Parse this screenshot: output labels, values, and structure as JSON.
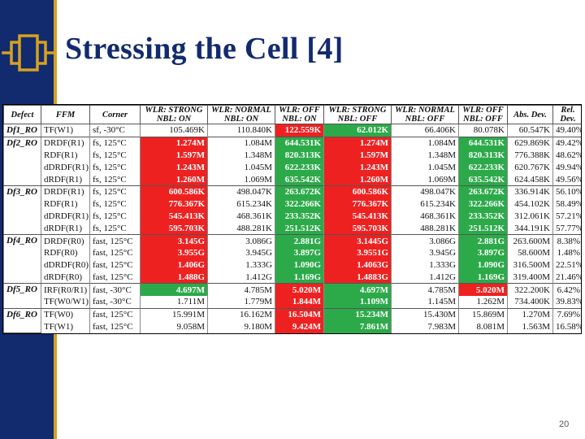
{
  "slide": {
    "title": "Stressing the Cell [4]",
    "page_number": "20"
  },
  "colors": {
    "sidebar": "#122a6e",
    "accent": "#d6a11f",
    "red": "#ee2121",
    "green": "#2caa4a"
  },
  "table": {
    "headers": [
      "Defect",
      "FFM",
      "Corner",
      "WLR: STRONG NBL: ON",
      "WLR: NORMAL NBL: ON",
      "WLR: OFF NBL: ON",
      "WLR: STRONG NBL: OFF",
      "WLR: NORMAL NBL: OFF",
      "WLR: OFF NBL: OFF",
      "Abs. Dev.",
      "Rel. Dev."
    ],
    "groups": [
      {
        "defect": "Df1_RO",
        "rows": [
          {
            "cells": [
              "TF(W1)",
              "sf, -30°C",
              "105.469K",
              "110.840K",
              "122.559K",
              "62.012K",
              "66.406K",
              "80.078K",
              "60.547K",
              "49.40%"
            ],
            "hl": [
              "",
              "",
              "",
              "",
              "red",
              "green",
              "",
              "",
              "",
              ""
            ]
          }
        ]
      },
      {
        "defect": "Df2_RO",
        "rows": [
          {
            "cells": [
              "DRDF(R1)",
              "fs, 125°C",
              "1.274M",
              "1.084M",
              "644.531K",
              "1.274M",
              "1.084M",
              "644.531K",
              "629.869K",
              "49.42%"
            ],
            "hl": [
              "",
              "",
              "red",
              "",
              "green",
              "red",
              "",
              "green",
              "",
              ""
            ]
          },
          {
            "cells": [
              "RDF(R1)",
              "fs, 125°C",
              "1.597M",
              "1.348M",
              "820.313K",
              "1.597M",
              "1.348M",
              "820.313K",
              "776.388K",
              "48.62%"
            ],
            "hl": [
              "",
              "",
              "red",
              "",
              "green",
              "red",
              "",
              "green",
              "",
              ""
            ]
          },
          {
            "cells": [
              "dDRDF(R1)",
              "fs, 125°C",
              "1.243M",
              "1.045M",
              "622.233K",
              "1.243M",
              "1.045M",
              "622.233K",
              "620.767K",
              "49.94%"
            ],
            "hl": [
              "",
              "",
              "red",
              "",
              "green",
              "red",
              "",
              "green",
              "",
              ""
            ]
          },
          {
            "cells": [
              "dRDF(R1)",
              "fs, 125°C",
              "1.260M",
              "1.069M",
              "635.542K",
              "1.260M",
              "1.069M",
              "635.542K",
              "624.458K",
              "49.56%"
            ],
            "hl": [
              "",
              "",
              "red",
              "",
              "green",
              "red",
              "",
              "green",
              "",
              ""
            ]
          }
        ]
      },
      {
        "defect": "Df3_RO",
        "rows": [
          {
            "cells": [
              "DRDF(R1)",
              "fs, 125°C",
              "600.586K",
              "498.047K",
              "263.672K",
              "600.586K",
              "498.047K",
              "263.672K",
              "336.914K",
              "56.10%"
            ],
            "hl": [
              "",
              "",
              "red",
              "",
              "green",
              "red",
              "",
              "green",
              "",
              ""
            ]
          },
          {
            "cells": [
              "RDF(R1)",
              "fs, 125°C",
              "776.367K",
              "615.234K",
              "322.266K",
              "776.367K",
              "615.234K",
              "322.266K",
              "454.102K",
              "58.49%"
            ],
            "hl": [
              "",
              "",
              "red",
              "",
              "green",
              "red",
              "",
              "green",
              "",
              ""
            ]
          },
          {
            "cells": [
              "dDRDF(R1)",
              "fs, 125°C",
              "545.413K",
              "468.361K",
              "233.352K",
              "545.413K",
              "468.361K",
              "233.352K",
              "312.061K",
              "57.21%"
            ],
            "hl": [
              "",
              "",
              "red",
              "",
              "green",
              "red",
              "",
              "green",
              "",
              ""
            ]
          },
          {
            "cells": [
              "dRDF(R1)",
              "fs, 125°C",
              "595.703K",
              "488.281K",
              "251.512K",
              "595.703K",
              "488.281K",
              "251.512K",
              "344.191K",
              "57.77%"
            ],
            "hl": [
              "",
              "",
              "red",
              "",
              "green",
              "red",
              "",
              "green",
              "",
              ""
            ]
          }
        ]
      },
      {
        "defect": "Df4_RO",
        "rows": [
          {
            "cells": [
              "DRDF(R0)",
              "fast, 125°C",
              "3.145G",
              "3.086G",
              "2.881G",
              "3.1445G",
              "3.086G",
              "2.881G",
              "263.600M",
              "8.38%"
            ],
            "hl": [
              "",
              "",
              "red",
              "",
              "green",
              "red",
              "",
              "green",
              "",
              ""
            ]
          },
          {
            "cells": [
              "RDF(R0)",
              "fast, 125°C",
              "3.955G",
              "3.945G",
              "3.897G",
              "3.9551G",
              "3.945G",
              "3.897G",
              "58.600M",
              "1.48%"
            ],
            "hl": [
              "",
              "",
              "red",
              "",
              "green",
              "red",
              "",
              "green",
              "",
              ""
            ]
          },
          {
            "cells": [
              "dDRDF(R0)",
              "fast, 125°C",
              "1.406G",
              "1.333G",
              "1.090G",
              "1.4063G",
              "1.333G",
              "1.090G",
              "316.500M",
              "22.51%"
            ],
            "hl": [
              "",
              "",
              "red",
              "",
              "green",
              "red",
              "",
              "green",
              "",
              ""
            ]
          },
          {
            "cells": [
              "dRDF(R0)",
              "fast, 125°C",
              "1.488G",
              "1.412G",
              "1.169G",
              "1.4883G",
              "1.412G",
              "1.169G",
              "319.400M",
              "21.46%"
            ],
            "hl": [
              "",
              "",
              "red",
              "",
              "green",
              "red",
              "",
              "green",
              "",
              ""
            ]
          }
        ]
      },
      {
        "defect": "Df5_RO",
        "rows": [
          {
            "cells": [
              "IRF(R0/R1)",
              "fast, -30°C",
              "4.697M",
              "4.785M",
              "5.020M",
              "4.697M",
              "4.785M",
              "5.020M",
              "322.200K",
              "6.42%"
            ],
            "hl": [
              "",
              "",
              "green",
              "",
              "red",
              "green",
              "",
              "red",
              "",
              ""
            ]
          },
          {
            "cells": [
              "TF(W0/W1)",
              "fast, -30°C",
              "1.711M",
              "1.779M",
              "1.844M",
              "1.109M",
              "1.145M",
              "1.262M",
              "734.400K",
              "39.83%"
            ],
            "hl": [
              "",
              "",
              "",
              "",
              "red",
              "green",
              "",
              "",
              "",
              ""
            ]
          }
        ]
      },
      {
        "defect": "Df6_RO",
        "rows": [
          {
            "cells": [
              "TF(W0)",
              "fast, 125°C",
              "15.991M",
              "16.162M",
              "16.504M",
              "15.234M",
              "15.430M",
              "15.869M",
              "1.270M",
              "7.69%"
            ],
            "hl": [
              "",
              "",
              "",
              "",
              "red",
              "green",
              "",
              "",
              "",
              ""
            ]
          },
          {
            "cells": [
              "TF(W1)",
              "fast, 125°C",
              "9.058M",
              "9.180M",
              "9.424M",
              "7.861M",
              "7.983M",
              "8.081M",
              "1.563M",
              "16.58%"
            ],
            "hl": [
              "",
              "",
              "",
              "",
              "red",
              "green",
              "",
              "",
              "",
              ""
            ]
          }
        ]
      }
    ]
  }
}
